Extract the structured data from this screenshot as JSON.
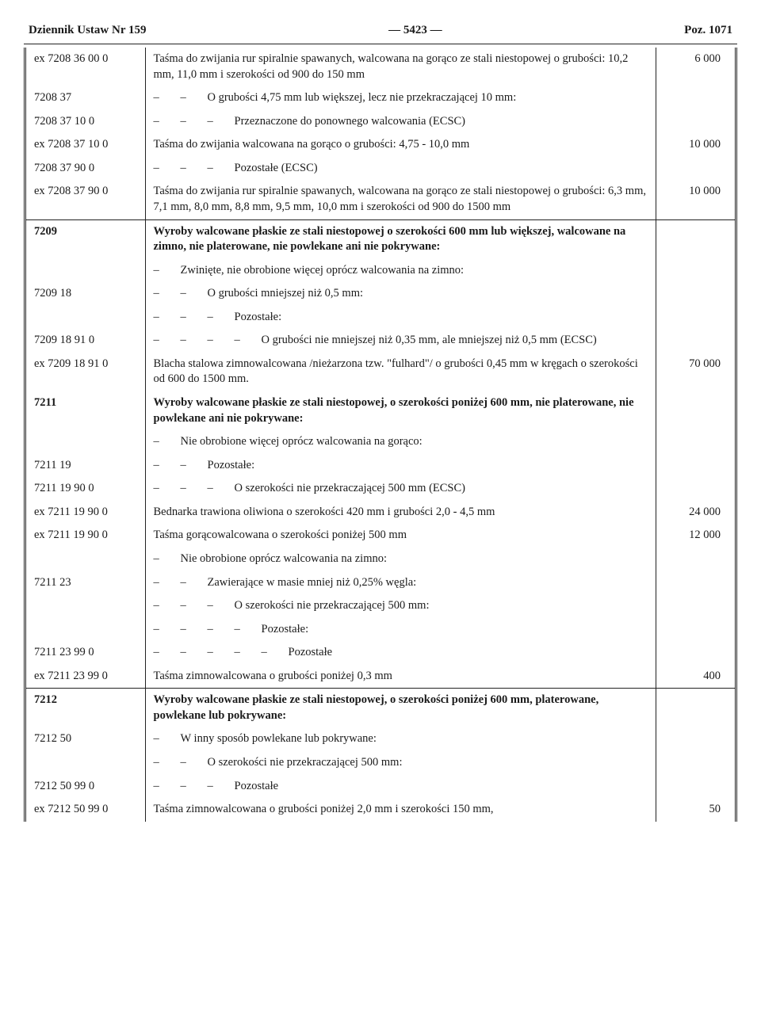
{
  "header": {
    "left": "Dziennik Ustaw Nr 159",
    "center": "— 5423 —",
    "right": "Poz. 1071"
  },
  "rows": [
    {
      "code": "ex 7208 36 00 0",
      "dash": 0,
      "text": "Taśma do zwijania rur spiralnie spawanych, walcowana na gorąco ze stali niestopowej o grubości: 10,2 mm, 11,0 mm i szerokości od 900 do 150 mm",
      "val": "6 000"
    },
    {
      "code": "7208 37",
      "dash": 2,
      "text": "O grubości 4,75 mm lub większej, lecz nie przekraczającej 10 mm:",
      "val": ""
    },
    {
      "code": "7208 37 10 0",
      "dash": 3,
      "text": "Przeznaczone do ponownego walcowania (ECSC)",
      "val": ""
    },
    {
      "code": "ex 7208 37 10 0",
      "dash": 0,
      "text": "Taśma do zwijania walcowana na gorąco o grubości: 4,75 - 10,0 mm",
      "val": "10 000"
    },
    {
      "code": "7208 37 90 0",
      "dash": 3,
      "text": "Pozostałe (ECSC)",
      "val": ""
    },
    {
      "code": "ex 7208 37 90 0",
      "dash": 0,
      "text": "Taśma do zwijania rur spiralnie spawanych, walcowana na gorąco ze stali niestopowej o grubości: 6,3 mm, 7,1 mm, 8,0 mm, 8,8 mm, 9,5 mm, 10,0 mm i szerokości od 900 do 1500 mm",
      "val": "10 000"
    },
    {
      "section": true,
      "code": "7209",
      "dash": 0,
      "bold": true,
      "text": "Wyroby walcowane płaskie ze stali niestopowej o szerokości 600 mm lub większej, walcowane na zimno, nie platerowane, nie powlekane ani nie pokrywane:",
      "val": ""
    },
    {
      "code": "",
      "dash": 1,
      "text": "Zwinięte, nie obrobione więcej oprócz walcowania na zimno:",
      "val": ""
    },
    {
      "code": "7209 18",
      "dash": 2,
      "text": "O grubości mniejszej niż 0,5 mm:",
      "val": ""
    },
    {
      "code": "",
      "dash": 3,
      "text": "Pozostałe:",
      "val": ""
    },
    {
      "code": "7209 18 91 0",
      "dash": 4,
      "text": "O grubości nie mniejszej niż 0,35 mm, ale mniejszej niż 0,5 mm (ECSC)",
      "val": ""
    },
    {
      "code": "ex 7209 18 91 0",
      "dash": 0,
      "text": "Blacha stalowa zimnowalcowana /nieżarzona tzw. \"fulhard\"/ o grubości 0,45 mm w kręgach o szerokości od 600 do 1500 mm.",
      "val": "70 000"
    },
    {
      "code": "7211",
      "dash": 0,
      "bold": true,
      "text": "Wyroby walcowane płaskie ze stali niestopowej, o szerokości poniżej 600 mm, nie platerowane, nie powlekane ani nie pokrywane:",
      "val": ""
    },
    {
      "code": "",
      "dash": 1,
      "text": "Nie obrobione więcej oprócz walcowania na gorąco:",
      "val": ""
    },
    {
      "code": "7211 19",
      "dash": 2,
      "text": "Pozostałe:",
      "val": ""
    },
    {
      "code": "7211 19 90 0",
      "dash": 3,
      "text": "O szerokości nie przekraczającej 500 mm (ECSC)",
      "val": ""
    },
    {
      "code": "ex 7211 19 90 0",
      "dash": 0,
      "text": "Bednarka trawiona oliwiona o szerokości 420 mm i grubości 2,0 - 4,5 mm",
      "val": "24 000"
    },
    {
      "code": "ex 7211 19 90 0",
      "dash": 0,
      "text": "Taśma gorącowalcowana o szerokości poniżej 500 mm",
      "val": "12 000"
    },
    {
      "code": "",
      "dash": 1,
      "text": "Nie obrobione oprócz walcowania na zimno:",
      "val": ""
    },
    {
      "code": "7211 23",
      "dash": 2,
      "text": "Zawierające w masie mniej niż 0,25% węgla:",
      "val": ""
    },
    {
      "code": "",
      "dash": 3,
      "text": "O szerokości nie przekraczającej 500 mm:",
      "val": ""
    },
    {
      "code": "",
      "dash": 4,
      "text": "Pozostałe:",
      "val": ""
    },
    {
      "code": "7211 23 99 0",
      "dash": 5,
      "text": "Pozostałe",
      "val": ""
    },
    {
      "code": "ex 7211 23 99 0",
      "dash": 0,
      "text": "Taśma zimnowalcowana o grubości poniżej 0,3 mm",
      "val": "400"
    },
    {
      "section": true,
      "code": "7212",
      "dash": 0,
      "bold": true,
      "text": "Wyroby walcowane płaskie ze stali niestopowej, o szerokości poniżej 600 mm, platerowane, powlekane lub pokrywane:",
      "val": ""
    },
    {
      "code": "7212 50",
      "dash": 1,
      "text": "W inny sposób powlekane lub pokrywane:",
      "val": ""
    },
    {
      "code": "",
      "dash": 2,
      "text": "O szerokości nie przekraczającej 500 mm:",
      "val": ""
    },
    {
      "code": "7212 50 99 0",
      "dash": 3,
      "text": "Pozostałe",
      "val": ""
    },
    {
      "code": "ex 7212 50 99 0",
      "dash": 0,
      "text": "Taśma zimnowalcowana o grubości poniżej 2,0 mm i szerokości 150 mm,",
      "val": "50"
    }
  ]
}
